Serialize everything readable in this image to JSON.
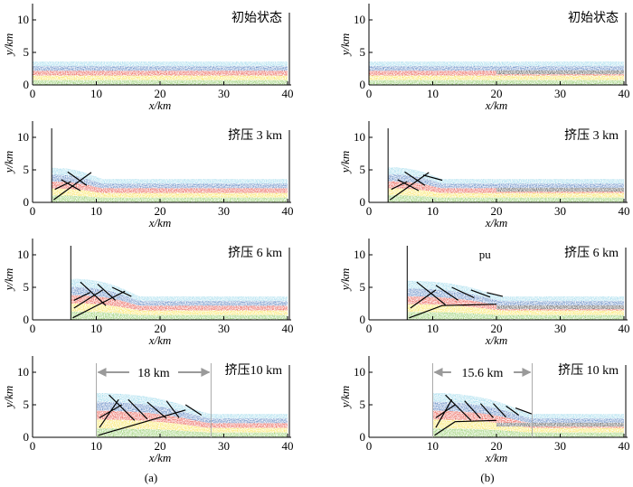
{
  "chart_data": {
    "type": "sandbox-simulation",
    "xlabel": "x/km",
    "ylabel": "y/km",
    "xlim": [
      0,
      40
    ],
    "ylim": [
      0,
      12.5
    ],
    "xticks": [
      "0",
      "10",
      "20",
      "30",
      "40"
    ],
    "yticks": [
      "0",
      "5",
      "10"
    ],
    "layer_colors": [
      "#8dd3e8",
      "#3f6fb6",
      "#e53a2d",
      "#f7df3c",
      "#7cc24a"
    ],
    "weak_layer_color": "#333333",
    "fault_color": "#000000",
    "columns": [
      {
        "label": "(a)",
        "panels": [
          {
            "name": "initial",
            "stage": "初始状态",
            "wall_x": 0,
            "layer_top": 3.6,
            "wedge_end": 0,
            "wedge_height": 0,
            "weak_from": null,
            "faults": [],
            "annotation": null,
            "measure": null
          },
          {
            "name": "shortening-3",
            "stage": "挤压 3 km",
            "wall_x": 3,
            "layer_top": 3.6,
            "wedge_end": 11,
            "wedge_height": 5.3,
            "weak_from": null,
            "faults": [
              [
                [
                  3.3,
                  0.4
                ],
                [
                  9.2,
                  4.6
                ]
              ],
              [
                [
                  4.5,
                  3.5
                ],
                [
                  7.5,
                  1.8
                ]
              ],
              [
                [
                  5.5,
                  4.7
                ],
                [
                  8.5,
                  2.6
                ]
              ],
              [
                [
                  3.5,
                  2.0
                ],
                [
                  6,
                  3.2
                ]
              ]
            ],
            "annotation": null,
            "measure": null
          },
          {
            "name": "shortening-6",
            "stage": "挤压 6 km",
            "wall_x": 6,
            "layer_top": 3.6,
            "wedge_end": 17,
            "wedge_height": 6.3,
            "weak_from": null,
            "faults": [
              [
                [
                  6.3,
                  0.3
                ],
                [
                  14.5,
                  4.4
                ]
              ],
              [
                [
                  6.5,
                  1.8
                ],
                [
                  11,
                  4.6
                ]
              ],
              [
                [
                  7.5,
                  5.8
                ],
                [
                  11.5,
                  2.2
                ]
              ],
              [
                [
                  10.2,
                  5.5
                ],
                [
                  13,
                  3.0
                ]
              ],
              [
                [
                  12.5,
                  5.0
                ],
                [
                  15.5,
                  3.6
                ]
              ],
              [
                [
                  6.5,
                  3.0
                ],
                [
                  9,
                  4.2
                ]
              ]
            ],
            "annotation": null,
            "measure": null
          },
          {
            "name": "shortening-10",
            "stage": "挤压10 km",
            "wall_x": 10,
            "layer_top": 3.6,
            "wedge_end": 28,
            "wedge_height": 6.8,
            "weak_from": null,
            "faults": [
              [
                [
                  10.3,
                  0.3
                ],
                [
                  24,
                  4.2
                ]
              ],
              [
                [
                  10.5,
                  1.5
                ],
                [
                  13.5,
                  5.8
                ]
              ],
              [
                [
                  12,
                  6.5
                ],
                [
                  16,
                  2.6
                ]
              ],
              [
                [
                  15,
                  5.8
                ],
                [
                  18,
                  2.8
                ]
              ],
              [
                [
                  18,
                  5.4
                ],
                [
                  21,
                  2.9
                ]
              ],
              [
                [
                  21,
                  5.6
                ],
                [
                  23,
                  3.0
                ]
              ],
              [
                [
                  24,
                  5.0
                ],
                [
                  26.5,
                  3.4
                ]
              ],
              [
                [
                  10.5,
                  3.0
                ],
                [
                  14,
                  5.0
                ]
              ]
            ],
            "annotation": null,
            "measure": {
              "from": 10,
              "to": 28,
              "label": "18 km"
            }
          }
        ]
      },
      {
        "label": "(b)",
        "panels": [
          {
            "name": "initial",
            "stage": "初始状态",
            "wall_x": 0,
            "layer_top": 3.6,
            "wedge_end": 0,
            "wedge_height": 0,
            "weak_from": 20,
            "faults": [],
            "annotation": null,
            "measure": null
          },
          {
            "name": "shortening-3",
            "stage": "挤压 3 km",
            "wall_x": 3,
            "layer_top": 3.6,
            "wedge_end": 11.5,
            "wedge_height": 5.4,
            "weak_from": 20,
            "faults": [
              [
                [
                  3.3,
                  0.4
                ],
                [
                  9.4,
                  4.6
                ]
              ],
              [
                [
                  4.5,
                  3.5
                ],
                [
                  7.8,
                  1.8
                ]
              ],
              [
                [
                  5.6,
                  4.7
                ],
                [
                  8.8,
                  2.6
                ]
              ],
              [
                [
                  3.5,
                  2.0
                ],
                [
                  6,
                  3.2
                ]
              ],
              [
                [
                  8.5,
                  4.2
                ],
                [
                  11.5,
                  3.4
                ]
              ]
            ],
            "annotation": null,
            "measure": null
          },
          {
            "name": "shortening-6",
            "stage": "挤压 6 km",
            "wall_x": 6,
            "layer_top": 3.6,
            "wedge_end": 21,
            "wedge_height": 6.0,
            "weak_from": 20,
            "faults": [
              [
                [
                  6.3,
                  0.3
                ],
                [
                  11.5,
                  2.2
                ],
                [
                  20,
                  2.4
                ]
              ],
              [
                [
                  6.5,
                  1.8
                ],
                [
                  10.5,
                  4.6
                ]
              ],
              [
                [
                  7.5,
                  5.8
                ],
                [
                  12,
                  2.3
                ]
              ],
              [
                [
                  10.5,
                  5.3
                ],
                [
                  14,
                  3.0
                ]
              ],
              [
                [
                  13,
                  5.0
                ],
                [
                  16.5,
                  3.4
                ]
              ],
              [
                [
                  16,
                  4.6
                ],
                [
                  19,
                  3.5
                ]
              ],
              [
                [
                  18.5,
                  4.2
                ],
                [
                  21,
                  3.6
                ]
              ]
            ],
            "annotation": "pu",
            "measure": null
          },
          {
            "name": "shortening-10",
            "stage": "挤压 10 km",
            "wall_x": 10,
            "layer_top": 3.6,
            "wedge_end": 25.6,
            "wedge_height": 6.8,
            "weak_from": 20,
            "faults": [
              [
                [
                  10.3,
                  0.3
                ],
                [
                  13.5,
                  2.4
                ],
                [
                  20,
                  2.6
                ]
              ],
              [
                [
                  10.5,
                  1.5
                ],
                [
                  13,
                  5.8
                ]
              ],
              [
                [
                  12,
                  6.5
                ],
                [
                  16,
                  2.6
                ]
              ],
              [
                [
                  15,
                  5.6
                ],
                [
                  17.5,
                  2.9
                ]
              ],
              [
                [
                  17.5,
                  5.2
                ],
                [
                  19.5,
                  3.0
                ]
              ],
              [
                [
                  19.5,
                  5.2
                ],
                [
                  21.5,
                  3.1
                ]
              ],
              [
                [
                  21.5,
                  4.8
                ],
                [
                  23.5,
                  3.4
                ]
              ],
              [
                [
                  23,
                  4.5
                ],
                [
                  25.5,
                  3.6
                ]
              ],
              [
                [
                  10.5,
                  3.0
                ],
                [
                  13.5,
                  5.0
                ]
              ]
            ],
            "annotation": null,
            "measure": {
              "from": 10,
              "to": 25.6,
              "label": "15.6 km"
            }
          }
        ]
      }
    ]
  }
}
